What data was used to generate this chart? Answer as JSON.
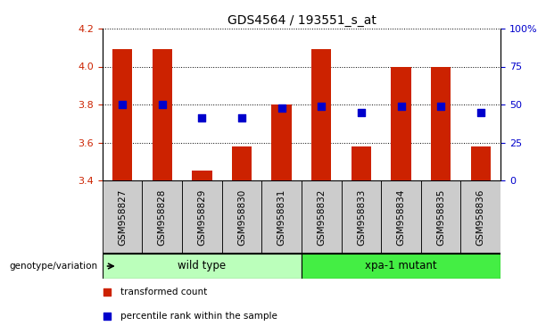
{
  "title": "GDS4564 / 193551_s_at",
  "samples": [
    "GSM958827",
    "GSM958828",
    "GSM958829",
    "GSM958830",
    "GSM958831",
    "GSM958832",
    "GSM958833",
    "GSM958834",
    "GSM958835",
    "GSM958836"
  ],
  "bar_values": [
    4.09,
    4.09,
    3.45,
    3.58,
    3.8,
    4.09,
    3.58,
    4.0,
    4.0,
    3.58
  ],
  "dot_values": [
    3.8,
    3.8,
    3.73,
    3.73,
    3.78,
    3.79,
    3.76,
    3.79,
    3.79,
    3.76
  ],
  "ylim_left": [
    3.4,
    4.2
  ],
  "ylim_right": [
    0,
    100
  ],
  "yticks_left": [
    3.4,
    3.6,
    3.8,
    4.0,
    4.2
  ],
  "yticks_right": [
    0,
    25,
    50,
    75,
    100
  ],
  "ytick_labels_right": [
    "0",
    "25",
    "50",
    "75",
    "100%"
  ],
  "bar_color": "#cc2200",
  "dot_color": "#0000cc",
  "bar_bottom": 3.4,
  "groups": [
    {
      "label": "wild type",
      "indices": [
        0,
        1,
        2,
        3,
        4
      ],
      "color": "#bbffbb"
    },
    {
      "label": "xpa-1 mutant",
      "indices": [
        5,
        6,
        7,
        8,
        9
      ],
      "color": "#44ee44"
    }
  ],
  "group_label": "genotype/variation",
  "legend_items": [
    {
      "color": "#cc2200",
      "label": "transformed count"
    },
    {
      "color": "#0000cc",
      "label": "percentile rank within the sample"
    }
  ],
  "tick_label_color_left": "#cc2200",
  "tick_label_color_right": "#0000cc",
  "bar_width": 0.5,
  "dot_size": 35,
  "gray_box_color": "#cccccc",
  "xlabel_fontsize": 7.5,
  "title_fontsize": 10
}
